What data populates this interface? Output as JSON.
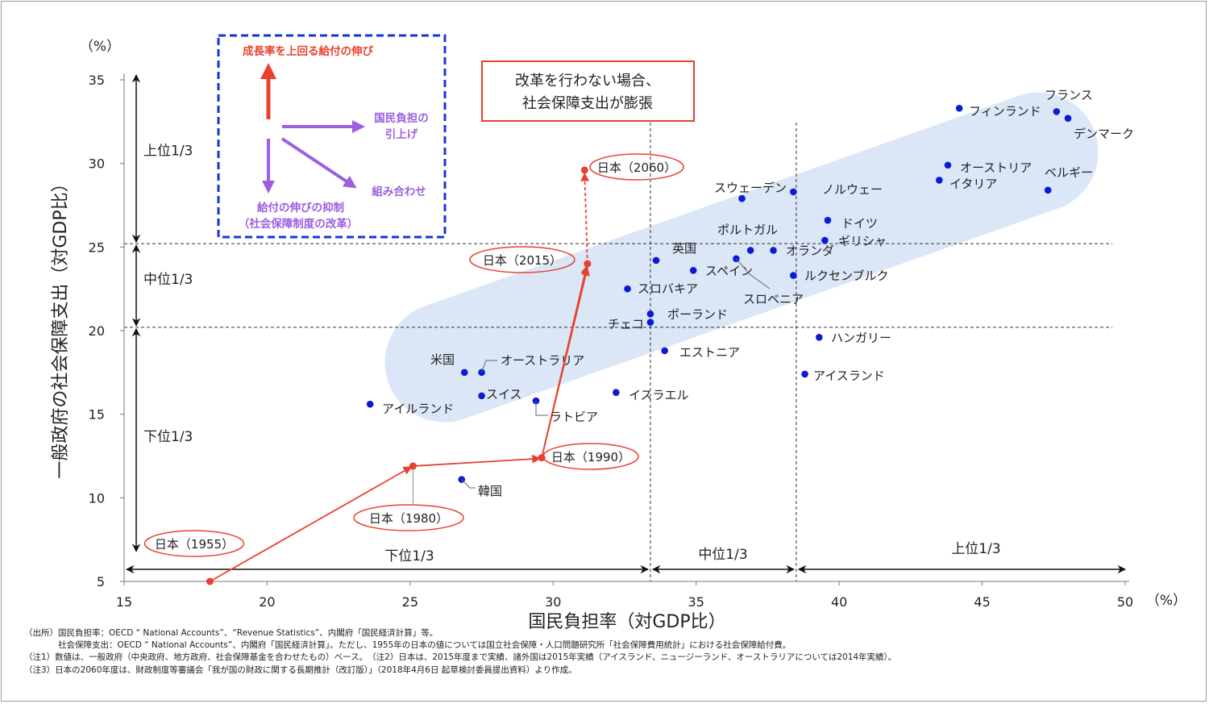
{
  "chart_data": {
    "type": "scatter",
    "xlabel": "国民負担率（対GDP比）",
    "ylabel": "一般政府の社会保障支出（対GDP比）",
    "x_unit": "（%）",
    "y_unit": "（%）",
    "xlim": [
      15,
      50
    ],
    "ylim": [
      5,
      35
    ],
    "x_ticks": [
      "15",
      "20",
      "25",
      "30",
      "35",
      "40",
      "45",
      "50"
    ],
    "y_ticks": [
      "5",
      "10",
      "15",
      "20",
      "25",
      "30",
      "35"
    ],
    "x_thresholds": [
      33.4,
      38.5
    ],
    "y_thresholds": [
      20.2,
      25.2
    ],
    "countries": [
      {
        "name": "フランス",
        "x": 47.6,
        "y": 33.1
      },
      {
        "name": "フィンランド",
        "x": 44.2,
        "y": 33.3
      },
      {
        "name": "デンマーク",
        "x": 48.0,
        "y": 32.7
      },
      {
        "name": "オーストリア",
        "x": 43.8,
        "y": 29.9
      },
      {
        "name": "イタリア",
        "x": 43.5,
        "y": 29.0
      },
      {
        "name": "ベルギー",
        "x": 47.3,
        "y": 28.4
      },
      {
        "name": "スウェーデン",
        "x": 36.6,
        "y": 27.9
      },
      {
        "name": "ノルウェー",
        "x": 38.4,
        "y": 28.3
      },
      {
        "name": "ドイツ",
        "x": 39.6,
        "y": 26.6
      },
      {
        "name": "ギリシャ",
        "x": 39.5,
        "y": 25.4
      },
      {
        "name": "ポルトガル",
        "x": 36.9,
        "y": 24.8
      },
      {
        "name": "オランダ",
        "x": 37.7,
        "y": 24.8
      },
      {
        "name": "英国",
        "x": 33.6,
        "y": 24.2
      },
      {
        "name": "スロベニア",
        "x": 36.4,
        "y": 24.3
      },
      {
        "name": "スペイン",
        "x": 34.9,
        "y": 23.6
      },
      {
        "name": "ルクセンブルク",
        "x": 38.4,
        "y": 23.3
      },
      {
        "name": "スロバキア",
        "x": 32.6,
        "y": 22.5
      },
      {
        "name": "ポーランド",
        "x": 33.4,
        "y": 21.0
      },
      {
        "name": "チェコ",
        "x": 33.4,
        "y": 20.5
      },
      {
        "name": "エストニア",
        "x": 33.9,
        "y": 18.8
      },
      {
        "name": "ハンガリー",
        "x": 39.3,
        "y": 19.6
      },
      {
        "name": "アイスランド",
        "x": 38.8,
        "y": 17.4
      },
      {
        "name": "米国",
        "x": 26.9,
        "y": 17.5
      },
      {
        "name": "オーストラリア",
        "x": 27.5,
        "y": 17.5
      },
      {
        "name": "スイス",
        "x": 27.5,
        "y": 16.1
      },
      {
        "name": "ラトビア",
        "x": 29.4,
        "y": 15.8
      },
      {
        "name": "イスラエル",
        "x": 32.2,
        "y": 16.3
      },
      {
        "name": "アイルランド",
        "x": 23.6,
        "y": 15.6
      },
      {
        "name": "韓国",
        "x": 26.8,
        "y": 11.1
      }
    ],
    "japan": [
      {
        "name": "日本（1955）",
        "x": 18.0,
        "y": 5.0
      },
      {
        "name": "日本（1980）",
        "x": 25.1,
        "y": 11.9
      },
      {
        "name": "日本（1990）",
        "x": 29.6,
        "y": 12.4
      },
      {
        "name": "日本（2015）",
        "x": 31.2,
        "y": 24.0
      },
      {
        "name": "日本（2060）",
        "x": 31.1,
        "y": 29.6
      }
    ],
    "band_labels_y": [
      "上位1/3",
      "中位1/3",
      "下位1/3"
    ],
    "band_labels_x": [
      "下位1/3",
      "中位1/3",
      "上位1/3"
    ],
    "callout": [
      "改革を行わない場合、",
      "社会保障支出が膨張"
    ],
    "legend": {
      "up": "成長率を上回る給付の伸び",
      "right": [
        "国民負担の",
        "引上げ"
      ],
      "diag": "組み合わせ",
      "down": [
        "給付の伸びの抑制",
        "（社会保障制度の改革）"
      ]
    }
  },
  "notes": [
    "（出所）国民負担率：OECD “ National Accounts”、“Revenue Statistics”、内閣府「国民経済計算」等。",
    "　　　　社会保障支出：OECD “ National Accounts”、内閣府「国民経済計算」。ただし、1955年の日本の値については国立社会保障・人口問題研究所「社会保障費用統計」における社会保障給付費。",
    "（注1）数値は、一般政府（中央政府、地方政府、社会保障基金を合わせたもの）ベース。　（注2）日本は、2015年度まで実績、諸外国は2015年実績（アイスランド、ニュージーランド、オーストラリアについては2014年実績）。",
    "（注3）日本の2060年度は、財政制度等審議会「我が国の財政に関する長期推計（改訂版）」（2018年4月6日 起草検討委員提出資料）より作成。"
  ],
  "colors": {
    "dot": "#0a1ad6",
    "japan": "#e8412f",
    "band": "#dbe6f7",
    "legend_border": "#1536d6",
    "legend_red": "#e8412f",
    "legend_purple": "#9b5fe0"
  }
}
